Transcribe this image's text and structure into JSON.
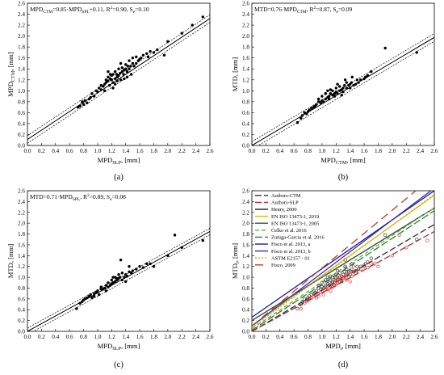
{
  "chart_data": [
    {
      "id": "a",
      "type": "scatter",
      "panel_label": "(a)",
      "equation": "MPD_CTM=0.85·MPD_SPL+0.11, R²=0.90, S_e=0.10",
      "eq_parts": {
        "t1": "MPD",
        "s1": "CTM",
        "t2": "=0.85·MPD",
        "s2": "SPL",
        "t3": "+0.11, R",
        "sp": "2",
        "t4": "=0.90, S",
        "s3": "e",
        "t5": "=0.10"
      },
      "xlabel": {
        "main": "MPD",
        "sub": "SLP",
        "tail": ", [mm]"
      },
      "ylabel": {
        "main": "MPD",
        "sub": "CTM",
        "tail": ", [mm]"
      },
      "xlim": [
        0,
        2.6
      ],
      "ylim": [
        0,
        2.6
      ],
      "xticks": [
        "0.0",
        "0.2",
        "0.4",
        "0.6",
        "0.8",
        "1.0",
        "1.2",
        "1.4",
        "1.6",
        "1.8",
        "2.0",
        "2.2",
        "2.4",
        "2.6"
      ],
      "yticks": [
        "0.0",
        "0.2",
        "0.4",
        "0.6",
        "0.8",
        "1.0",
        "1.2",
        "1.4",
        "1.6",
        "1.8",
        "2.0",
        "2.2",
        "2.4",
        "2.6"
      ],
      "fit": {
        "slope": 0.85,
        "intercept": 0.11,
        "band": 0.07
      },
      "x": [
        0.75,
        0.78,
        0.8,
        0.82,
        0.85,
        0.88,
        0.9,
        0.92,
        0.95,
        0.98,
        1.0,
        1.02,
        1.05,
        1.05,
        1.08,
        1.1,
        1.1,
        1.12,
        1.12,
        1.15,
        1.15,
        1.17,
        1.18,
        1.2,
        1.2,
        1.22,
        1.22,
        1.25,
        1.25,
        1.27,
        1.28,
        1.3,
        1.3,
        1.32,
        1.33,
        1.35,
        1.35,
        1.37,
        1.38,
        1.4,
        1.4,
        1.42,
        1.43,
        1.45,
        1.45,
        1.47,
        1.5,
        1.5,
        1.52,
        1.55,
        1.55,
        1.58,
        1.6,
        1.62,
        1.65,
        1.7,
        1.72,
        1.75,
        1.8,
        1.85,
        1.95,
        2.0,
        2.2,
        2.35,
        2.5,
        1.15,
        1.22,
        1.28,
        1.33,
        1.38,
        0.72,
        1.48,
        1.25,
        1.18,
        1.42
      ],
      "y": [
        0.72,
        0.8,
        0.75,
        0.82,
        0.78,
        0.85,
        0.88,
        0.95,
        0.9,
        1.0,
        0.98,
        1.05,
        1.02,
        1.1,
        1.08,
        1.12,
        1.0,
        1.15,
        1.2,
        1.18,
        1.25,
        1.1,
        1.22,
        1.2,
        1.28,
        1.15,
        1.3,
        1.22,
        1.35,
        1.3,
        1.25,
        1.28,
        1.4,
        1.32,
        1.2,
        1.35,
        1.42,
        1.3,
        1.38,
        1.4,
        1.48,
        1.35,
        1.45,
        1.4,
        1.55,
        1.45,
        1.5,
        1.6,
        1.45,
        1.5,
        1.62,
        1.55,
        1.58,
        1.6,
        1.65,
        1.68,
        1.62,
        1.72,
        1.7,
        1.75,
        1.65,
        1.9,
        2.05,
        2.2,
        2.35,
        1.35,
        1.05,
        1.18,
        1.5,
        1.22,
        0.7,
        1.3,
        1.12,
        1.3,
        1.25
      ]
    },
    {
      "id": "b",
      "type": "scatter",
      "panel_label": "(b)",
      "equation": "MTD=0.76·MPD_CTM, R²=0.87, S_e=0.09",
      "eq_parts": {
        "t1": "MTD=0.76·MPD",
        "s1": "CTM",
        "t2": ", R",
        "sp": "2",
        "t3": "=0.87, S",
        "s2": "e",
        "t4": "=0.09"
      },
      "xlabel": {
        "main": "MPD",
        "sub": "CTM",
        "tail": ", [mm]"
      },
      "ylabel": {
        "main": "MTD",
        "sub": "",
        "tail": ", [mm]"
      },
      "xlim": [
        0,
        2.6
      ],
      "ylim": [
        0,
        2.6
      ],
      "xticks": [
        "0.0",
        "0.2",
        "0.4",
        "0.6",
        "0.8",
        "1.0",
        "1.2",
        "1.4",
        "1.6",
        "1.8",
        "2.0",
        "2.2",
        "2.4",
        "2.6"
      ],
      "yticks": [
        "0.0",
        "0.2",
        "0.4",
        "0.6",
        "0.8",
        "1.0",
        "1.2",
        "1.4",
        "1.6",
        "1.8",
        "2.0",
        "2.2",
        "2.4",
        "2.6"
      ],
      "fit": {
        "slope": 0.76,
        "intercept": 0.0,
        "band": 0.07
      },
      "x": [
        0.65,
        0.7,
        0.72,
        0.75,
        0.78,
        0.8,
        0.82,
        0.85,
        0.88,
        0.9,
        0.92,
        0.95,
        0.98,
        1.0,
        1.0,
        1.02,
        1.05,
        1.05,
        1.08,
        1.1,
        1.1,
        1.12,
        1.15,
        1.15,
        1.18,
        1.2,
        1.2,
        1.22,
        1.25,
        1.25,
        1.28,
        1.3,
        1.3,
        1.32,
        1.35,
        1.35,
        1.38,
        1.4,
        1.4,
        1.42,
        1.45,
        1.48,
        1.5,
        1.52,
        1.55,
        1.6,
        1.62,
        1.65,
        1.7,
        1.9,
        2.35,
        1.12,
        1.18,
        1.22,
        1.28,
        0.95,
        1.05,
        1.33,
        1.08,
        1.43
      ],
      "y": [
        0.42,
        0.5,
        0.55,
        0.6,
        0.58,
        0.62,
        0.65,
        0.68,
        0.7,
        0.72,
        0.75,
        0.8,
        0.78,
        0.82,
        0.9,
        0.8,
        0.85,
        0.95,
        0.88,
        0.9,
        0.85,
        0.95,
        0.92,
        1.0,
        0.95,
        0.98,
        1.05,
        0.95,
        1.0,
        1.08,
        1.02,
        1.05,
        0.98,
        1.1,
        1.05,
        1.15,
        1.1,
        1.12,
        1.05,
        1.15,
        1.1,
        1.12,
        1.2,
        1.15,
        1.2,
        1.22,
        1.25,
        1.28,
        1.35,
        1.78,
        1.7,
        1.02,
        0.9,
        1.12,
        0.92,
        0.85,
        0.95,
        1.2,
        1.0,
        1.25
      ]
    },
    {
      "id": "c",
      "type": "scatter",
      "panel_label": "(c)",
      "equation": "MTD=0.71·MPD_SPL, R²=0.89, S_e=0.08",
      "eq_parts": {
        "t1": "MTD=0.71·MPD",
        "s1": "SPL",
        "t2": ", R",
        "sp": "2",
        "t3": "=0.89, S",
        "s2": "e",
        "t4": "=0.08"
      },
      "xlabel": {
        "main": "MPD",
        "sub": "SLP",
        "tail": ", [mm]"
      },
      "ylabel": {
        "main": "MTD",
        "sub": "",
        "tail": ", [mm]"
      },
      "xlim": [
        0,
        2.6
      ],
      "ylim": [
        0,
        2.6
      ],
      "xticks": [
        "0.0",
        "0.2",
        "0.4",
        "0.6",
        "0.8",
        "1.0",
        "1.2",
        "1.4",
        "1.6",
        "1.8",
        "2.0",
        "2.2",
        "2.4",
        "2.6"
      ],
      "yticks": [
        "0.0",
        "0.2",
        "0.4",
        "0.6",
        "0.8",
        "1.0",
        "1.2",
        "1.4",
        "1.6",
        "1.8",
        "2.0",
        "2.2",
        "2.4",
        "2.6"
      ],
      "fit": {
        "slope": 0.71,
        "intercept": 0.0,
        "band": 0.06
      },
      "x": [
        0.7,
        0.75,
        0.78,
        0.8,
        0.82,
        0.85,
        0.88,
        0.9,
        0.92,
        0.95,
        0.98,
        1.0,
        1.02,
        1.05,
        1.05,
        1.08,
        1.1,
        1.12,
        1.15,
        1.15,
        1.18,
        1.2,
        1.2,
        1.22,
        1.25,
        1.25,
        1.28,
        1.3,
        1.3,
        1.32,
        1.35,
        1.35,
        1.38,
        1.4,
        1.42,
        1.45,
        1.45,
        1.48,
        1.5,
        1.55,
        1.6,
        1.65,
        1.7,
        1.75,
        1.8,
        2.0,
        2.1,
        2.2,
        2.5,
        1.12,
        1.22,
        1.33,
        1.4,
        1.27,
        0.95
      ],
      "y": [
        0.42,
        0.52,
        0.55,
        0.58,
        0.6,
        0.62,
        0.65,
        0.68,
        0.62,
        0.7,
        0.72,
        0.75,
        0.68,
        0.78,
        0.82,
        0.78,
        0.8,
        0.85,
        0.82,
        0.9,
        0.85,
        0.88,
        0.95,
        0.9,
        0.92,
        1.0,
        0.95,
        0.98,
        1.05,
        1.0,
        0.95,
        1.08,
        1.0,
        1.05,
        1.02,
        1.1,
        1.2,
        1.08,
        1.12,
        1.15,
        1.2,
        1.18,
        1.25,
        1.25,
        1.2,
        1.4,
        1.78,
        1.55,
        1.68,
        0.75,
        1.0,
        1.32,
        0.92,
        0.98,
        0.65
      ]
    },
    {
      "id": "d",
      "type": "line",
      "panel_label": "(d)",
      "xlabel": {
        "main": "MPD",
        "sub": "i",
        "tail": ", [mm]"
      },
      "ylabel": {
        "main": "MTD",
        "sub": "i",
        "tail": ", [mm]"
      },
      "xlim": [
        0,
        2.6
      ],
      "ylim": [
        0,
        2.6
      ],
      "xticks": [
        "0.0",
        "0.2",
        "0.4",
        "0.6",
        "0.8",
        "1.0",
        "1.2",
        "1.4",
        "1.6",
        "1.8",
        "2.0",
        "2.2",
        "2.4",
        "2.6"
      ],
      "yticks": [
        "0.0",
        "0.2",
        "0.4",
        "0.6",
        "0.8",
        "1.0",
        "1.2",
        "1.4",
        "1.6",
        "1.8",
        "2.0",
        "2.2",
        "2.4",
        "2.6"
      ],
      "legend_position": "top-left",
      "series": [
        {
          "name": "Authors-CTM",
          "color": "#333333",
          "dash": "8,3",
          "slope": 0.76,
          "intercept": 0.0
        },
        {
          "name": "Authors-SLP",
          "color": "#b03030",
          "dash": "8,3",
          "slope": 0.71,
          "intercept": 0.0
        },
        {
          "name": "Henry, 2000",
          "color": "#1a1a1a",
          "dash": "",
          "slope": 0.8,
          "intercept": 0.2
        },
        {
          "name": "EN ISO 13473-1, 2019",
          "color": "#d4c000",
          "dash": "",
          "slope": 0.93,
          "intercept": 0.1
        },
        {
          "name": "EN ISO 13473-1, 2005",
          "color": "#3a5a3a",
          "dash": "",
          "slope": 0.8,
          "intercept": 0.2
        },
        {
          "name": "Ćelko et al. 2016",
          "color": "#6ab04c",
          "dash": "5,3",
          "slope": 0.86,
          "intercept": 0.05
        },
        {
          "name": "Zuniga-Garcia et al. 2016",
          "color": "#2e7d32",
          "dash": "9,3",
          "slope": 0.85,
          "intercept": 0.02
        },
        {
          "name": "Fisco et al. 2013, a",
          "color": "#1f1f8f",
          "dash": "",
          "slope": 0.9,
          "intercept": 0.26
        },
        {
          "name": "Fisco et al. 2013, b",
          "color": "#3030c0",
          "dash": "",
          "slope": 0.98,
          "intercept": 0.1
        },
        {
          "name": "ASTM E2157 - 01",
          "color": "#e6a020",
          "dash": "2,2",
          "slope": 0.947,
          "intercept": 0.069
        },
        {
          "name": "Fisco, 2009",
          "color": "#c0392b",
          "dash": "10,6",
          "slope": 1.07,
          "intercept": 0.1
        }
      ]
    }
  ]
}
